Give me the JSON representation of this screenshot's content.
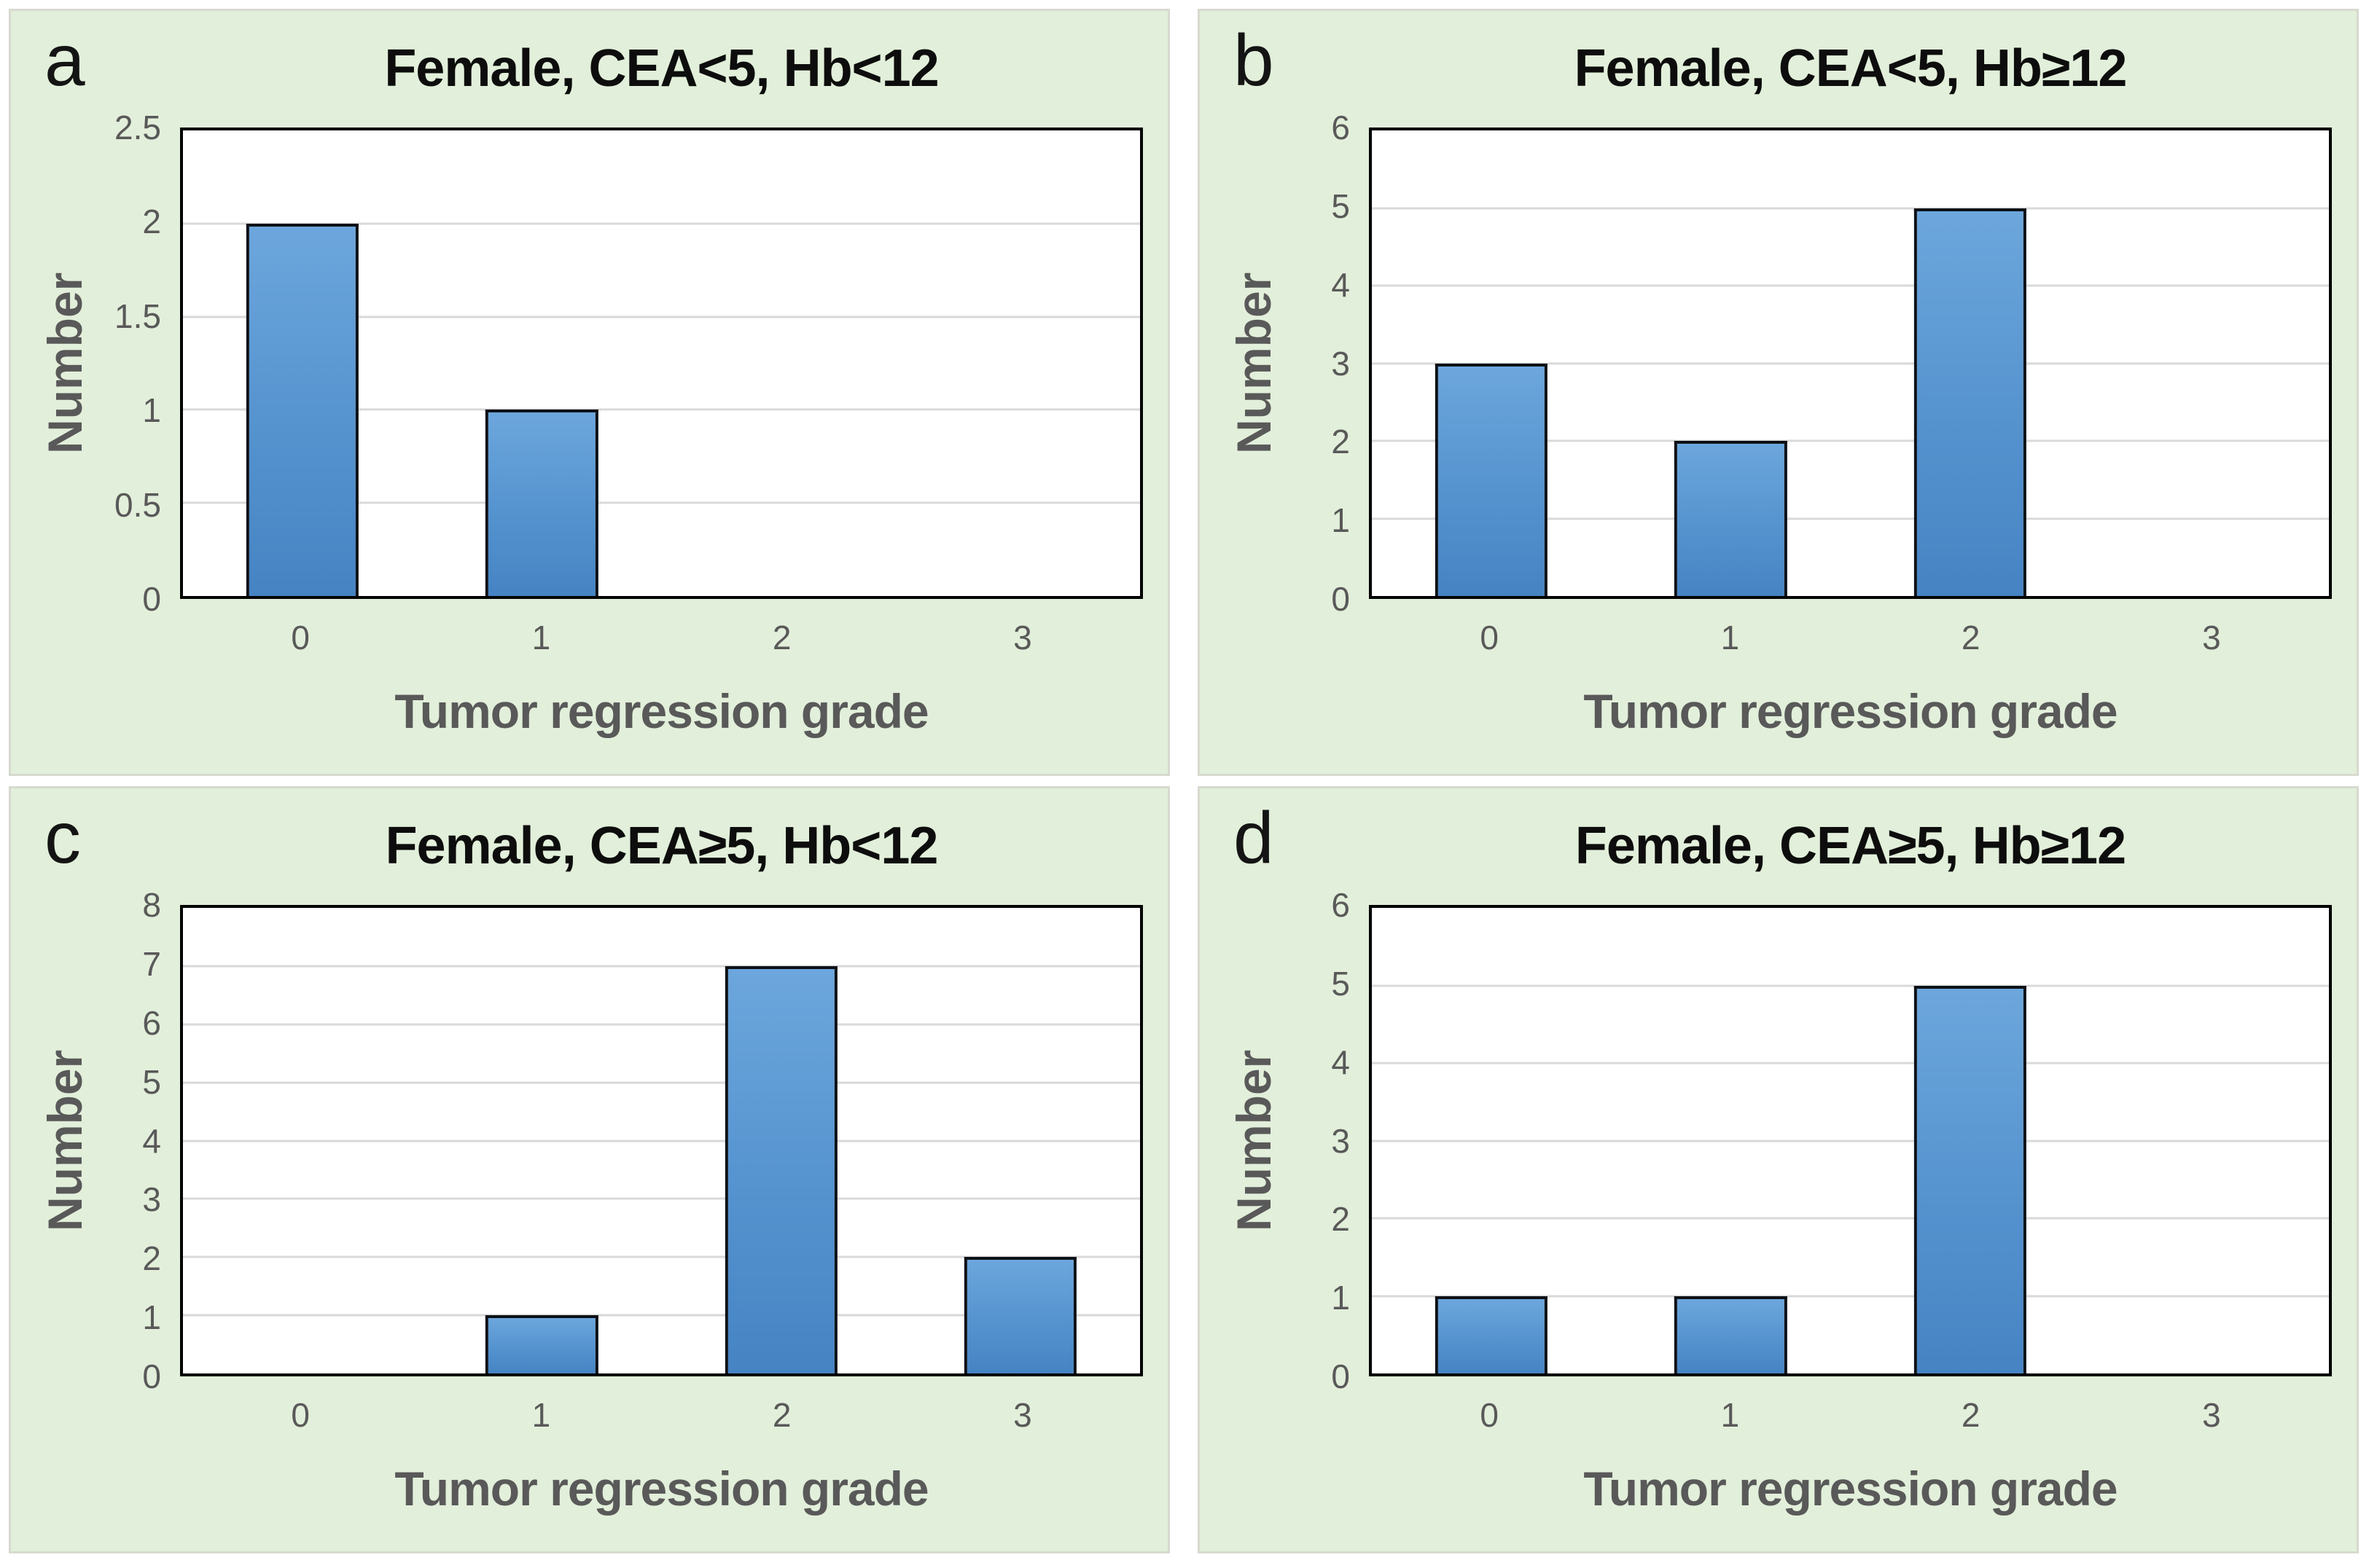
{
  "figure": {
    "panel_background": "#e2efda",
    "panel_border_color": "#d7dacf",
    "plot_background": "#ffffff",
    "plot_frame_color": "#000000",
    "gridline_color": "#d9d9d9",
    "bar_fill_top": "#6ca6dc",
    "bar_fill_bottom": "#4583c3",
    "bar_outline": "#0d1117",
    "axis_text_color": "#595959",
    "title_color": "#0d0d0d"
  },
  "chart_data": [
    {
      "letter": "a",
      "type": "bar",
      "title": "Female, CEA<5, Hb<12",
      "xlabel": "Tumor regression grade",
      "ylabel": "Number",
      "categories": [
        "0",
        "1",
        "2",
        "3"
      ],
      "values": [
        2,
        1,
        0,
        0
      ],
      "ylim": [
        0,
        2.5
      ],
      "ytick_interval": 0.5,
      "grid": true,
      "legend": "none"
    },
    {
      "letter": "b",
      "type": "bar",
      "title": "Female, CEA<5, Hb≥12",
      "xlabel": "Tumor regression grade",
      "ylabel": "Number",
      "categories": [
        "0",
        "1",
        "2",
        "3"
      ],
      "values": [
        3,
        2,
        5,
        0
      ],
      "ylim": [
        0,
        6
      ],
      "ytick_interval": 1,
      "grid": true,
      "legend": "none"
    },
    {
      "letter": "c",
      "type": "bar",
      "title": "Female, CEA≥5, Hb<12",
      "xlabel": "Tumor regression grade",
      "ylabel": "Number",
      "categories": [
        "0",
        "1",
        "2",
        "3"
      ],
      "values": [
        0,
        1,
        7,
        2
      ],
      "ylim": [
        0,
        8
      ],
      "ytick_interval": 1,
      "grid": true,
      "legend": "none"
    },
    {
      "letter": "d",
      "type": "bar",
      "title": "Female, CEA≥5, Hb≥12",
      "xlabel": "Tumor regression grade",
      "ylabel": "Number",
      "categories": [
        "0",
        "1",
        "2",
        "3"
      ],
      "values": [
        1,
        1,
        5,
        0
      ],
      "ylim": [
        0,
        6
      ],
      "ytick_interval": 1,
      "grid": true,
      "legend": "none"
    }
  ]
}
